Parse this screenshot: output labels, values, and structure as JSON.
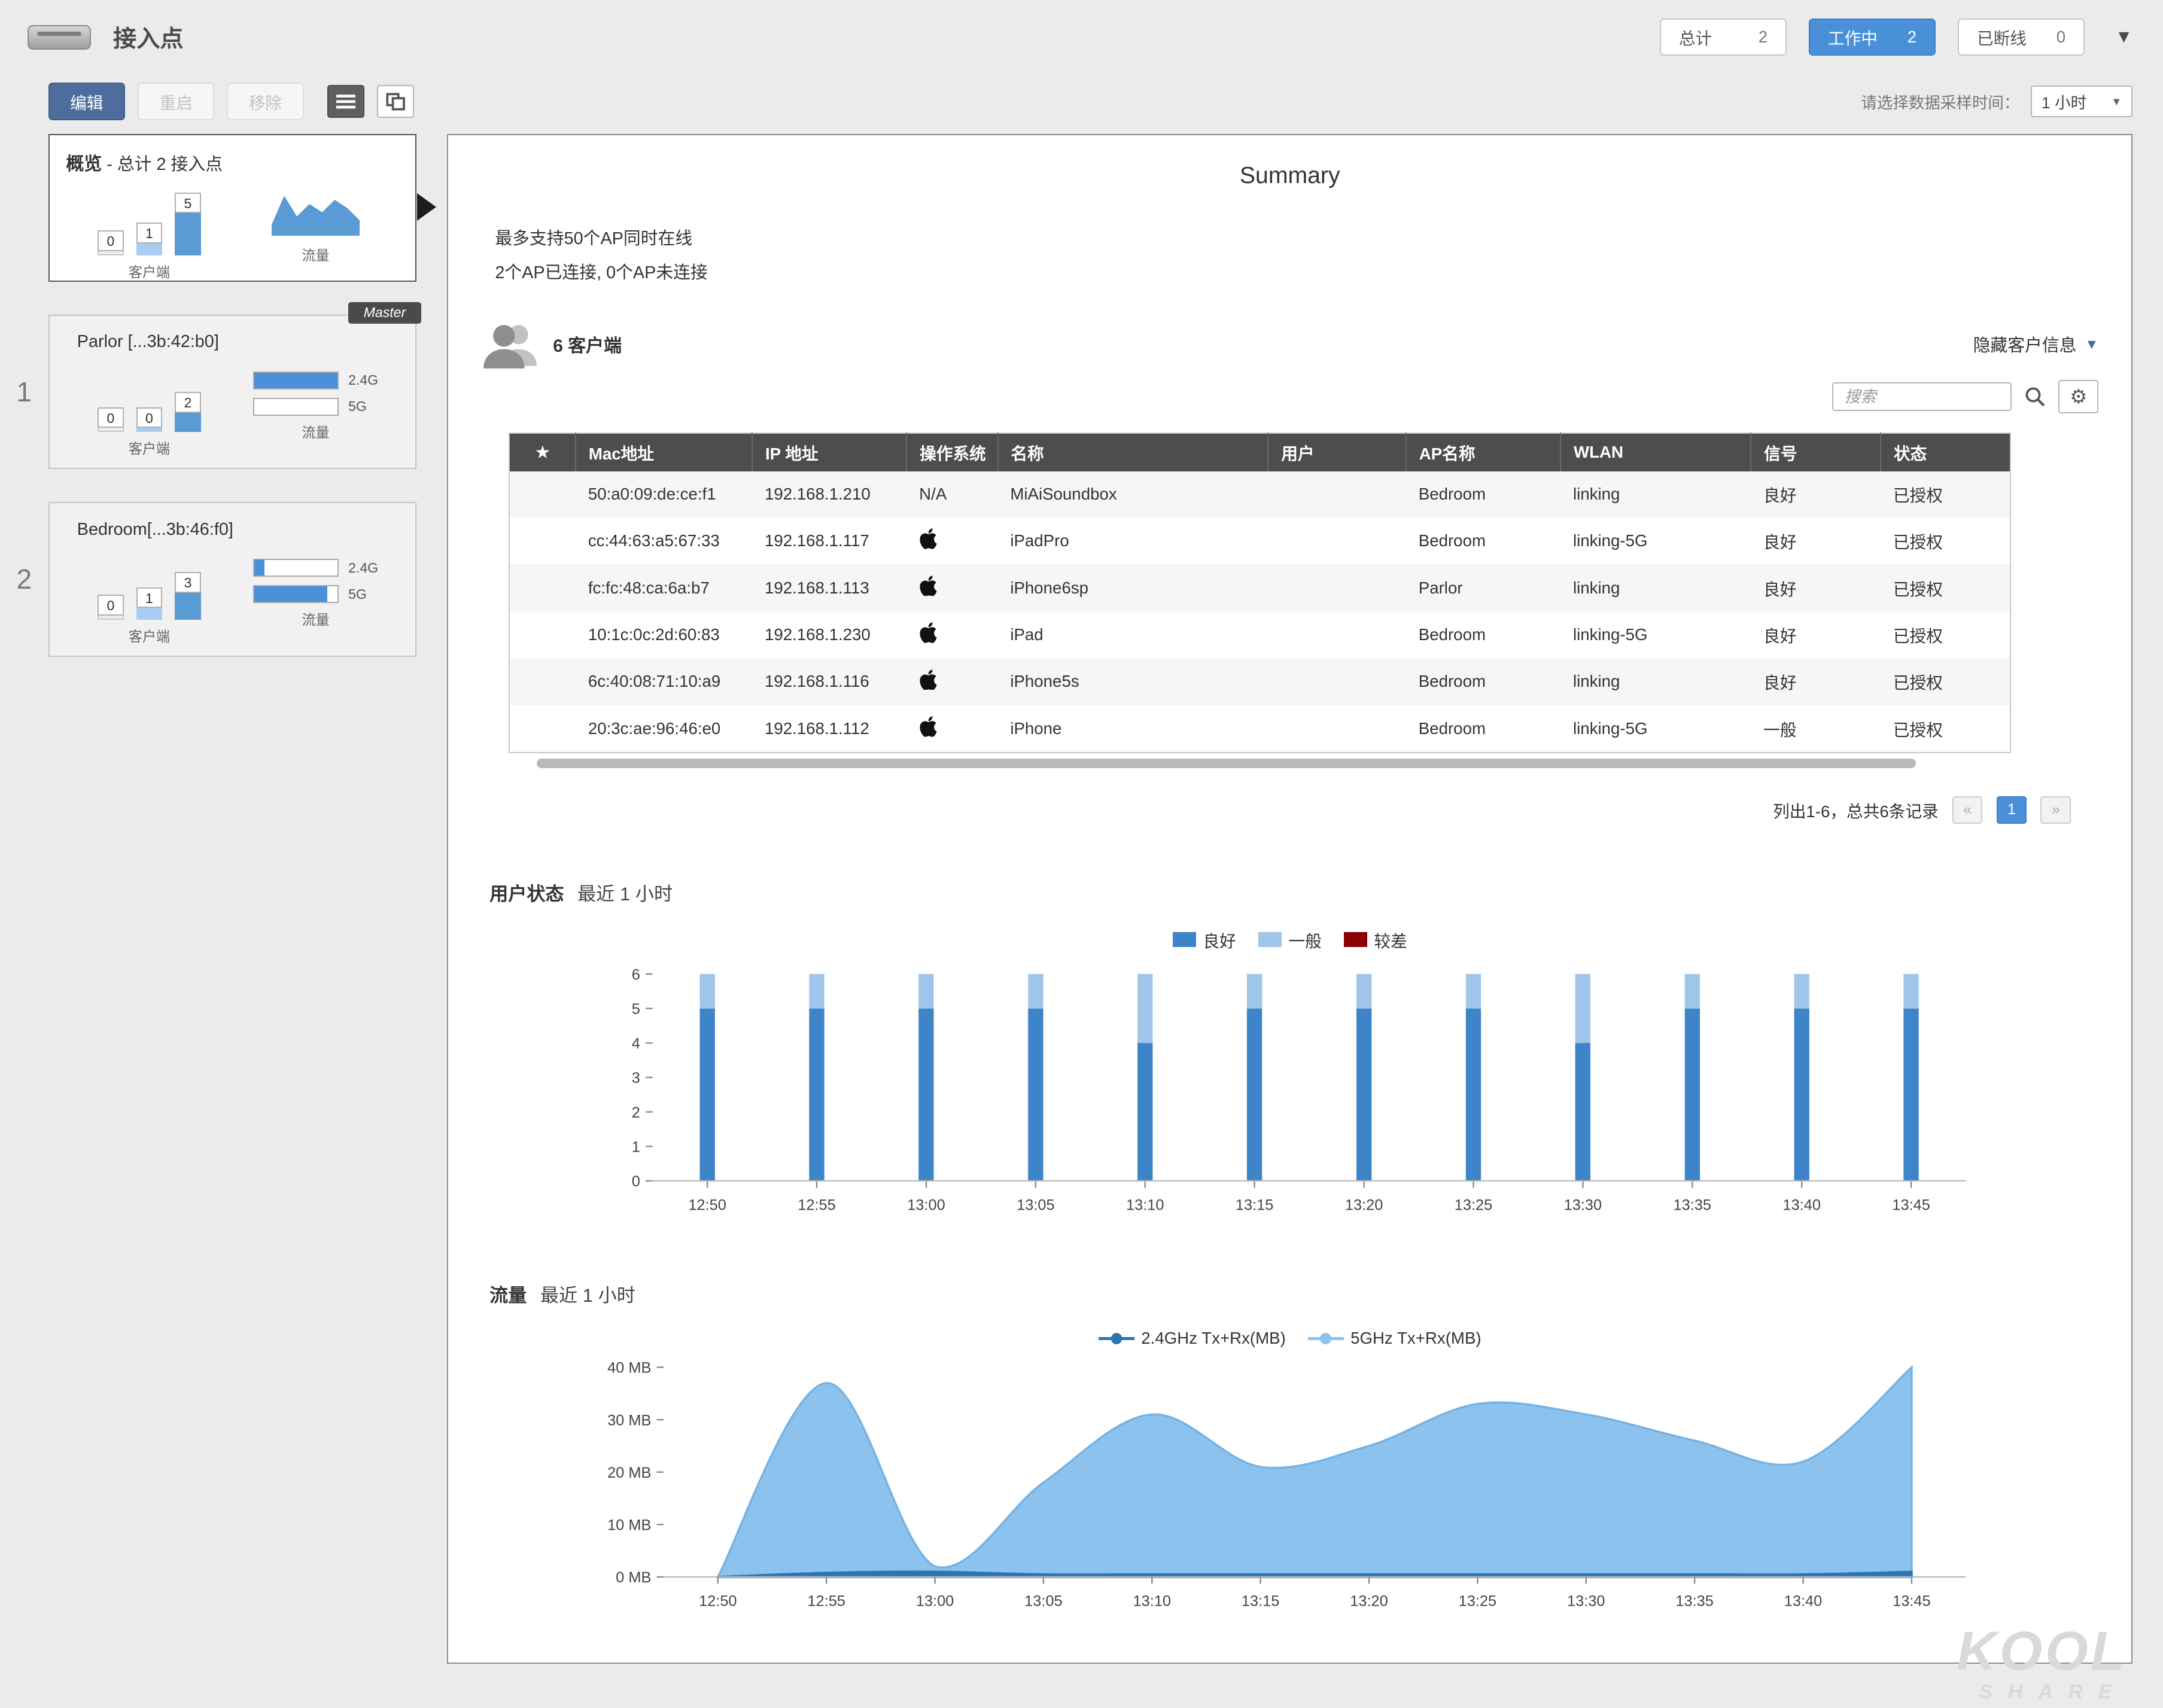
{
  "header": {
    "title": "接入点",
    "filters": [
      {
        "label": "总计",
        "count": "2",
        "active": false
      },
      {
        "label": "工作中",
        "count": "2",
        "active": true
      },
      {
        "label": "已断线",
        "count": "0",
        "active": false
      }
    ],
    "collapse_icon": "▼"
  },
  "toolbar": {
    "edit": "编辑",
    "restart": "重启",
    "remove": "移除",
    "sample_label": "请选择数据采样时间：",
    "sample_value": "1 小时",
    "select_icon": "▼"
  },
  "sidebar": {
    "overview": {
      "title": "概览",
      "subtitle": "- 总计 2 接入点",
      "clients_label": "客户端",
      "traffic_label": "流量",
      "bars": [
        0,
        1,
        5
      ],
      "spark": [
        2,
        9,
        4,
        7,
        5,
        8,
        6,
        3
      ]
    },
    "aps": [
      {
        "index": "1",
        "name": "Parlor [...3b:42:b0]",
        "tag": "Master",
        "clients_label": "客户端",
        "traffic_label": "流量",
        "bars": [
          0,
          0,
          2
        ],
        "traffic": [
          {
            "label": "2.4G",
            "pct": 100
          },
          {
            "label": "5G",
            "pct": 0
          }
        ]
      },
      {
        "index": "2",
        "name": "Bedroom[...3b:46:f0]",
        "clients_label": "客户端",
        "traffic_label": "流量",
        "bars": [
          0,
          1,
          3
        ],
        "traffic": [
          {
            "label": "2.4G",
            "pct": 12
          },
          {
            "label": "5G",
            "pct": 88
          }
        ]
      }
    ]
  },
  "main": {
    "title": "Summary",
    "info_line1": "最多支持50个AP同时在线",
    "info_line2": "2个AP已连接, 0个AP未连接",
    "clients_title": "6 客户端",
    "hide_clients": "隐藏客户信息",
    "hide_icon": "▼",
    "search_placeholder": "搜索",
    "gear_icon": "⚙",
    "star_icon": "★",
    "table": {
      "headers": [
        "Mac地址",
        "IP 地址",
        "操作系统",
        "名称",
        "用户",
        "AP名称",
        "WLAN",
        "信号",
        "状态"
      ],
      "rows": [
        {
          "mac": "50:a0:09:de:ce:f1",
          "ip": "192.168.1.210",
          "os": "N/A",
          "name": "MiAiSoundbox",
          "user": "",
          "ap": "Bedroom",
          "wlan": "linking",
          "signal": "良好",
          "status": "已授权"
        },
        {
          "mac": "cc:44:63:a5:67:33",
          "ip": "192.168.1.117",
          "os": "apple",
          "name": "iPadPro",
          "user": "",
          "ap": "Bedroom",
          "wlan": "linking-5G",
          "signal": "良好",
          "status": "已授权"
        },
        {
          "mac": "fc:fc:48:ca:6a:b7",
          "ip": "192.168.1.113",
          "os": "apple",
          "name": "iPhone6sp",
          "user": "",
          "ap": "Parlor",
          "wlan": "linking",
          "signal": "良好",
          "status": "已授权"
        },
        {
          "mac": "10:1c:0c:2d:60:83",
          "ip": "192.168.1.230",
          "os": "apple",
          "name": "iPad",
          "user": "",
          "ap": "Bedroom",
          "wlan": "linking-5G",
          "signal": "良好",
          "status": "已授权"
        },
        {
          "mac": "6c:40:08:71:10:a9",
          "ip": "192.168.1.116",
          "os": "apple",
          "name": "iPhone5s",
          "user": "",
          "ap": "Bedroom",
          "wlan": "linking",
          "signal": "良好",
          "status": "已授权"
        },
        {
          "mac": "20:3c:ae:96:46:e0",
          "ip": "192.168.1.112",
          "os": "apple",
          "name": "iPhone",
          "user": "",
          "ap": "Bedroom",
          "wlan": "linking-5G",
          "signal": "一般",
          "status": "已授权"
        }
      ]
    },
    "pagination": {
      "summary": "列出1-6，总共6条记录",
      "prev": "«",
      "page": "1",
      "next": "»"
    },
    "user_status_title": "用户状态",
    "user_status_sub": "最近 1 小时",
    "traffic_title": "流量",
    "traffic_sub": "最近 1 小时"
  },
  "colors": {
    "accent": "#4a90d9",
    "good": "#3d85c8",
    "fair": "#9fc5e8",
    "poor": "#8b0000",
    "area_5g": "#8cc3ee",
    "line_24g": "#2e74b5"
  },
  "chart_data": [
    {
      "type": "bar",
      "variant": "stacked",
      "title": "用户状态",
      "subtitle": "最近 1 小时",
      "categories": [
        "12:50",
        "12:55",
        "13:00",
        "13:05",
        "13:10",
        "13:15",
        "13:20",
        "13:25",
        "13:30",
        "13:35",
        "13:40",
        "13:45"
      ],
      "series": [
        {
          "name": "良好",
          "color": "#3d85c8",
          "values": [
            5,
            5,
            5,
            5,
            4,
            5,
            5,
            5,
            4,
            5,
            5,
            5
          ]
        },
        {
          "name": "一般",
          "color": "#9fc5e8",
          "values": [
            1,
            1,
            1,
            1,
            2,
            1,
            1,
            1,
            2,
            1,
            1,
            1
          ]
        },
        {
          "name": "较差",
          "color": "#8b0000",
          "values": [
            0,
            0,
            0,
            0,
            0,
            0,
            0,
            0,
            0,
            0,
            0,
            0
          ]
        }
      ],
      "ylim": [
        0,
        6
      ],
      "yticks": [
        0,
        1,
        2,
        3,
        4,
        5,
        6
      ],
      "legend_position": "top",
      "grid": false
    },
    {
      "type": "area",
      "title": "流量",
      "subtitle": "最近 1 小时",
      "categories": [
        "12:50",
        "12:55",
        "13:00",
        "13:05",
        "13:10",
        "13:15",
        "13:20",
        "13:25",
        "13:30",
        "13:35",
        "13:40",
        "13:45"
      ],
      "series": [
        {
          "name": "2.4GHz Tx+Rx(MB)",
          "color": "#2e74b5",
          "values": [
            0,
            0.8,
            1,
            0.5,
            0.5,
            0.5,
            0.5,
            0.5,
            0.5,
            0.5,
            0.5,
            1
          ]
        },
        {
          "name": "5GHz Tx+Rx(MB)",
          "color": "#8cc3ee",
          "values": [
            0,
            37,
            2,
            18,
            31,
            21,
            25,
            33,
            31,
            26,
            22,
            40
          ]
        }
      ],
      "ylim": [
        0,
        40
      ],
      "yticks": [
        {
          "v": 0,
          "label": "0 MB"
        },
        {
          "v": 10,
          "label": "10 MB"
        },
        {
          "v": 20,
          "label": "20 MB"
        },
        {
          "v": 30,
          "label": "30 MB"
        },
        {
          "v": 40,
          "label": "40 MB"
        }
      ],
      "legend_position": "top",
      "grid": false
    }
  ],
  "watermark": {
    "line1": "KOOL",
    "line2": "SHARE"
  }
}
